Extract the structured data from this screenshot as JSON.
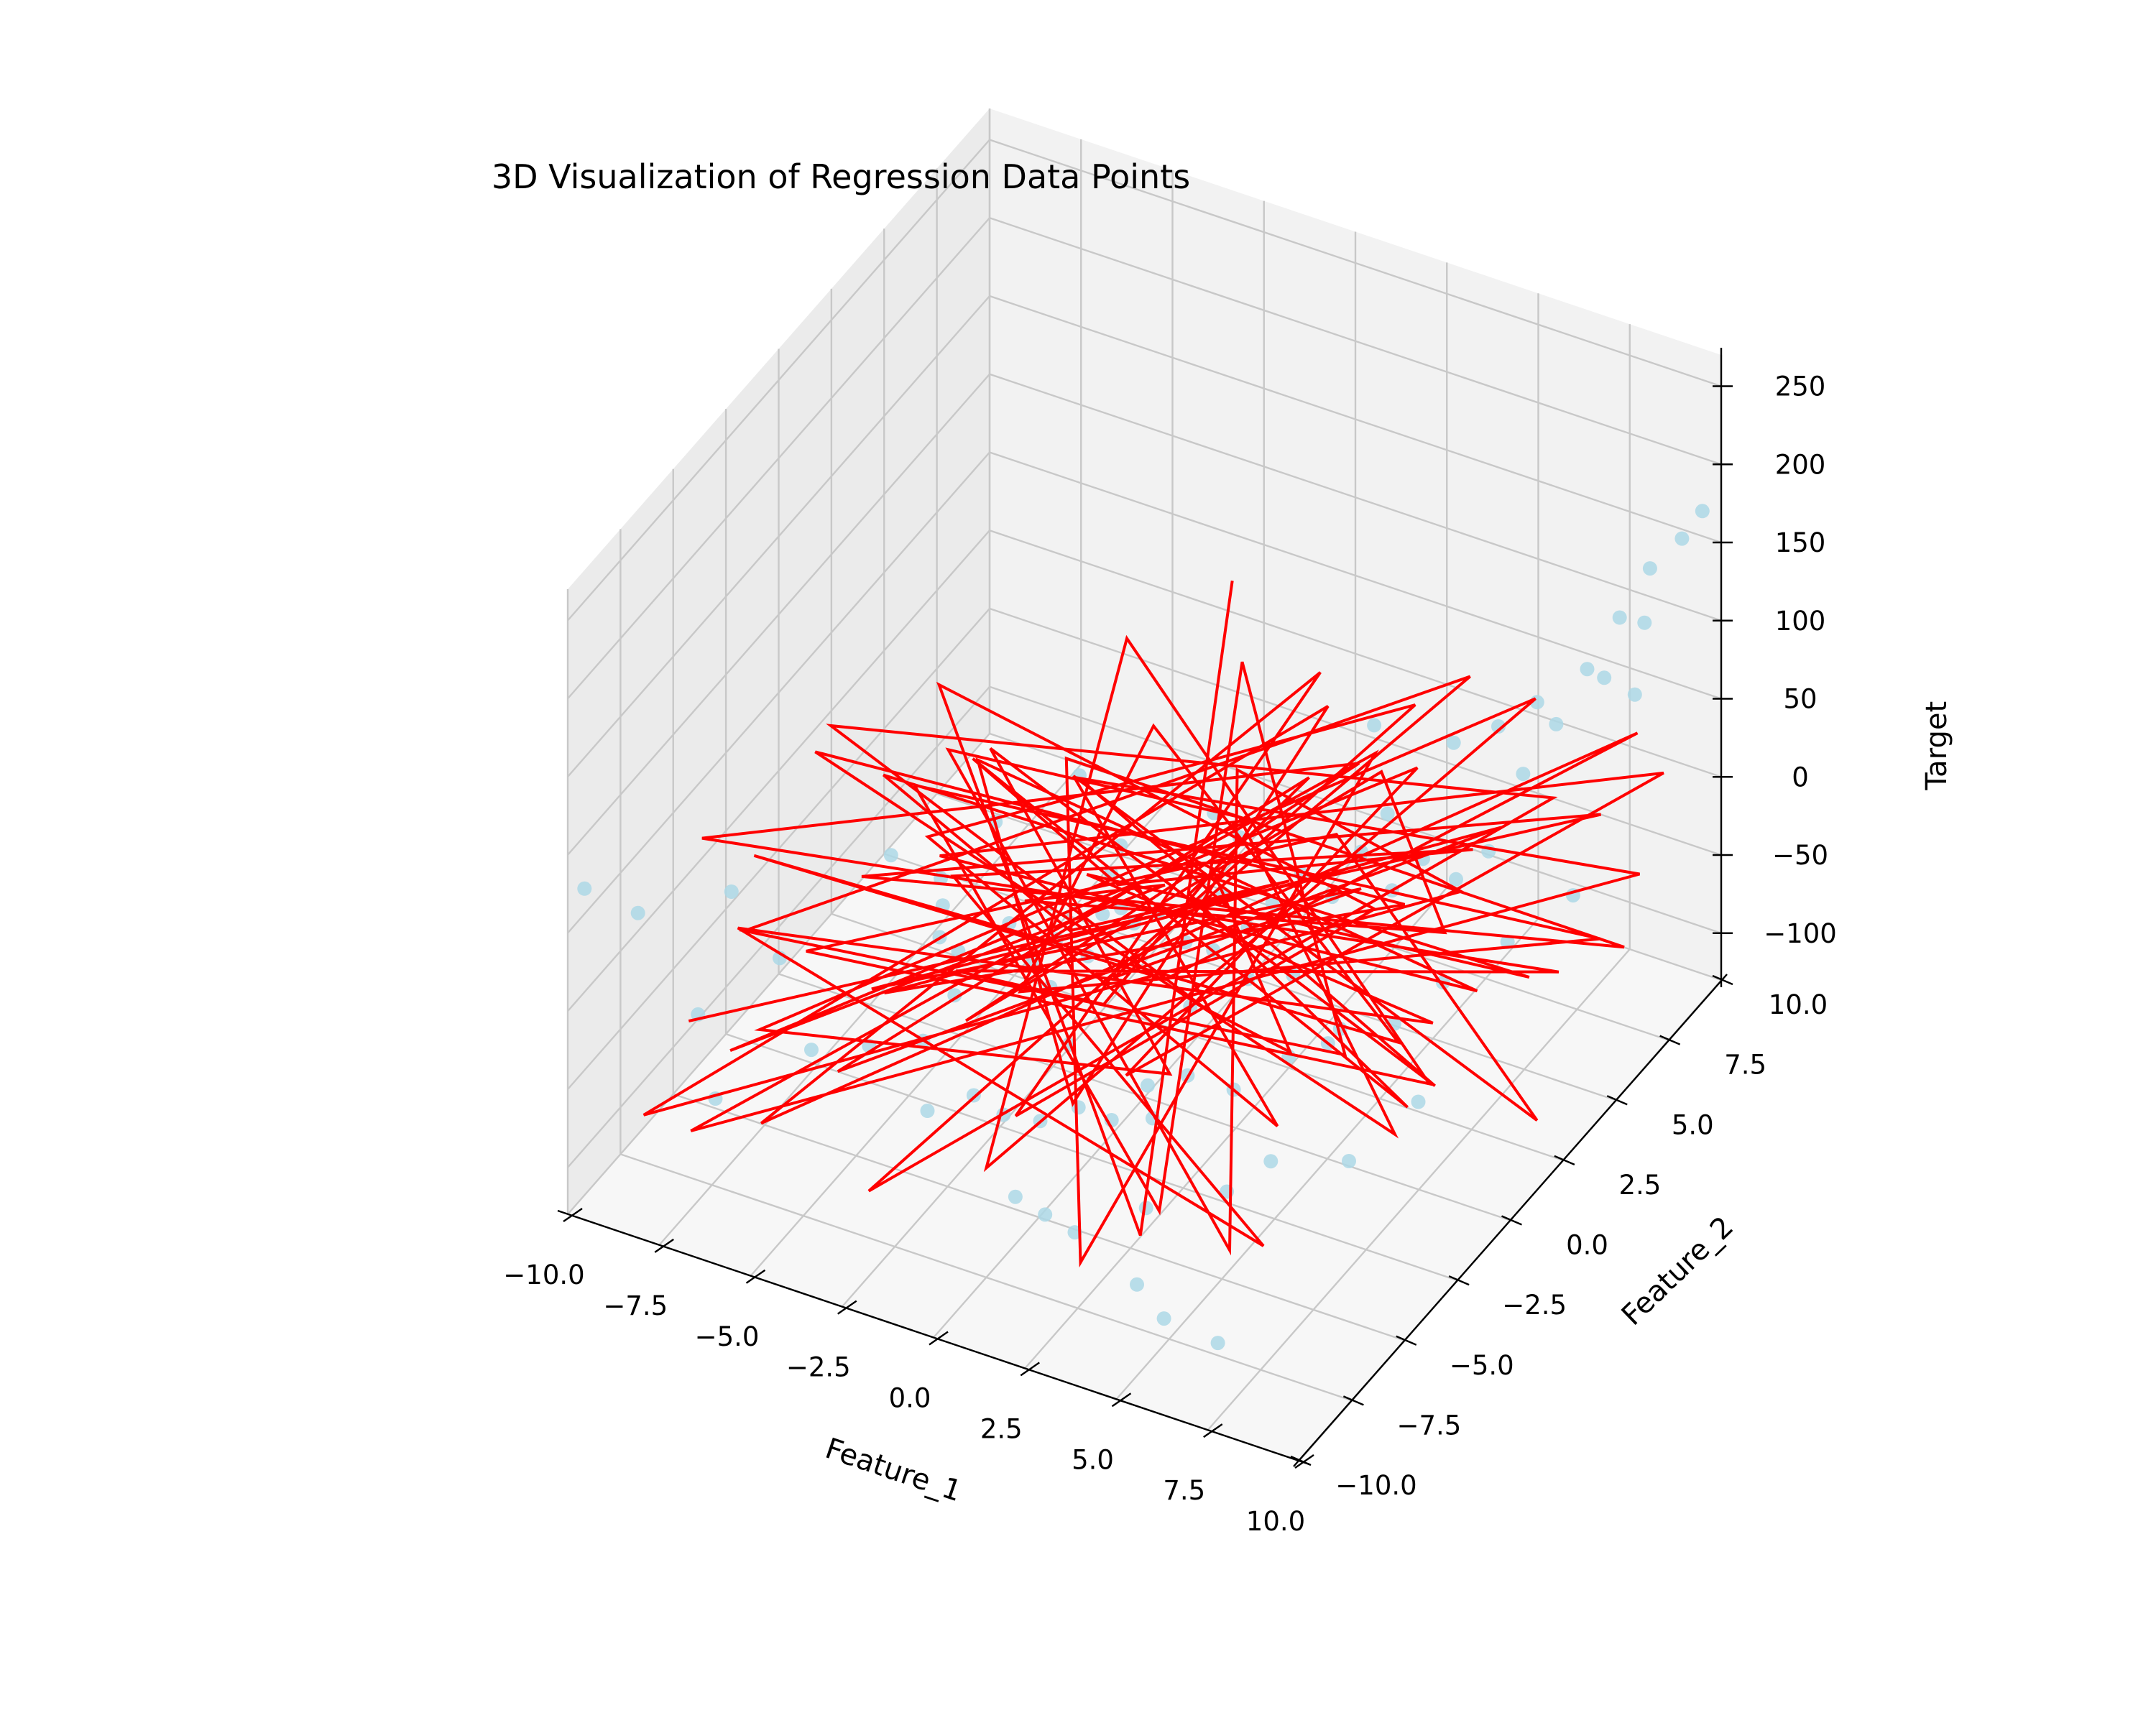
{
  "chart_data": {
    "type": "scatter",
    "title": "3D Visualization of Regression Data Points",
    "xlabel": "Feature_1",
    "ylabel": "Feature_2",
    "zlabel": "Target",
    "xlim": [
      -10,
      10
    ],
    "ylim": [
      -10,
      10
    ],
    "zlim": [
      -130,
      270
    ],
    "x_ticks": [
      -10.0,
      -7.5,
      -5.0,
      -2.5,
      0.0,
      2.5,
      5.0,
      7.5,
      10.0
    ],
    "x_tick_labels": [
      "−10.0",
      "−7.5",
      "−5.0",
      "−2.5",
      "0.0",
      "2.5",
      "5.0",
      "7.5",
      "10.0"
    ],
    "y_ticks": [
      -10.0,
      -7.5,
      -5.0,
      -2.5,
      0.0,
      2.5,
      5.0,
      7.5,
      10.0
    ],
    "y_tick_labels": [
      "−10.0",
      "−7.5",
      "−5.0",
      "−2.5",
      "0.0",
      "2.5",
      "5.0",
      "7.5",
      "10.0"
    ],
    "z_ticks": [
      -100,
      -50,
      0,
      50,
      100,
      150,
      200,
      250
    ],
    "z_tick_labels": [
      "−100",
      "−50",
      "0",
      "50",
      "100",
      "150",
      "200",
      "250"
    ],
    "grid": true,
    "colors": {
      "points": "#add8e6",
      "line": "#ff0000",
      "pane_back": "#f2f2f2",
      "pane_side": "#ebebeb",
      "pane_floor": "#f7f7f7",
      "grid": "#c8c8c8"
    },
    "series": [
      {
        "type": "scatter3d",
        "points": [
          [
            -9.6,
            -9.9,
            80
          ],
          [
            -8.6,
            -9.1,
            60
          ],
          [
            -7.6,
            -6.4,
            40
          ],
          [
            -6.9,
            -9.2,
            10
          ],
          [
            -5.2,
            -3.0,
            30
          ],
          [
            -6.8,
            -5.5,
            -10
          ],
          [
            -7.0,
            -8.2,
            -60
          ],
          [
            -4.3,
            -2.2,
            10
          ],
          [
            -4.1,
            -2.6,
            -20
          ],
          [
            -3.9,
            -2.8,
            5
          ],
          [
            -3.3,
            -3.1,
            -15
          ],
          [
            -2.6,
            -1.9,
            -10
          ],
          [
            -2.1,
            -1.7,
            -35
          ],
          [
            -1.6,
            -1.4,
            -20
          ],
          [
            -1.2,
            -0.6,
            -40
          ],
          [
            -0.8,
            -0.6,
            -10
          ],
          [
            -0.4,
            0.2,
            -25
          ],
          [
            0.2,
            0.3,
            -15
          ],
          [
            0.6,
            0.9,
            -40
          ],
          [
            1.1,
            1.8,
            -20
          ],
          [
            1.5,
            2.3,
            -45
          ],
          [
            2.0,
            2.6,
            -30
          ],
          [
            2.5,
            3.1,
            -15
          ],
          [
            3.0,
            3.7,
            -35
          ],
          [
            3.5,
            4.2,
            -10
          ],
          [
            4.0,
            4.8,
            -40
          ],
          [
            4.5,
            5.4,
            -25
          ],
          [
            5.0,
            6.1,
            -45
          ],
          [
            5.6,
            6.6,
            -30
          ],
          [
            6.2,
            7.2,
            15
          ],
          [
            6.7,
            7.9,
            40
          ],
          [
            7.2,
            8.5,
            70
          ],
          [
            7.8,
            9.0,
            100
          ],
          [
            8.4,
            9.4,
            130
          ],
          [
            9.1,
            9.7,
            150
          ],
          [
            9.6,
            9.8,
            170
          ],
          [
            9.0,
            8.1,
            120
          ],
          [
            8.3,
            7.4,
            90
          ],
          [
            6.1,
            6.2,
            60
          ],
          [
            4.8,
            3.2,
            40
          ],
          [
            -1.9,
            -4.8,
            -70
          ],
          [
            -1.2,
            -4.6,
            -80
          ],
          [
            -0.6,
            -3.9,
            -90
          ],
          [
            0.1,
            -3.3,
            -85
          ],
          [
            0.6,
            -2.6,
            -100
          ],
          [
            1.3,
            -2.1,
            -80
          ],
          [
            2.1,
            -1.6,
            -75
          ],
          [
            2.9,
            -0.8,
            -90
          ],
          [
            3.6,
            0.6,
            -85
          ],
          [
            4.6,
            1.3,
            -70
          ],
          [
            5.5,
            2.3,
            -75
          ],
          [
            6.2,
            3.4,
            -60
          ],
          [
            7.1,
            4.9,
            -50
          ],
          [
            8.2,
            6.1,
            -30
          ],
          [
            -0.3,
            -5.6,
            -110
          ],
          [
            0.8,
            -6.1,
            -105
          ],
          [
            1.9,
            -6.6,
            -100
          ],
          [
            3.1,
            -5.3,
            -95
          ],
          [
            4.5,
            -3.9,
            -95
          ],
          [
            5.3,
            -3.2,
            -80
          ],
          [
            6.8,
            -2.1,
            -85
          ],
          [
            7.6,
            -0.2,
            -70
          ],
          [
            3.6,
            -6.6,
            -120
          ],
          [
            4.8,
            -7.4,
            -120
          ],
          [
            6.1,
            -7.1,
            -130
          ],
          [
            -5.3,
            -6.6,
            -40
          ],
          [
            -4.3,
            -5.6,
            -45
          ],
          [
            -2.3,
            -6.3,
            -60
          ],
          [
            -3.0,
            -3.8,
            -30
          ],
          [
            -1.4,
            1.3,
            0
          ],
          [
            1.1,
            2.6,
            5
          ],
          [
            3.7,
            3.8,
            -5
          ],
          [
            4.3,
            7.2,
            20
          ],
          [
            2.3,
            6.9,
            20
          ],
          [
            -2.7,
            1.6,
            30
          ],
          [
            -0.8,
            -0.2,
            10
          ],
          [
            0.4,
            2.6,
            15
          ],
          [
            -3.9,
            -0.3,
            20
          ],
          [
            5.6,
            8.9,
            30
          ],
          [
            8.1,
            9.2,
            50
          ],
          [
            -0.4,
            -2.9,
            -55
          ],
          [
            1.6,
            -0.6,
            -50
          ],
          [
            2.6,
            0.4,
            -40
          ],
          [
            -1.1,
            0.8,
            -30
          ],
          [
            0.9,
            1.7,
            -55
          ],
          [
            3.2,
            1.5,
            -50
          ],
          [
            -2.0,
            -1.0,
            -60
          ],
          [
            2.3,
            -3.6,
            -70
          ],
          [
            -3.4,
            -4.6,
            -50
          ],
          [
            4.9,
            0.2,
            -60
          ]
        ]
      },
      {
        "type": "line3d",
        "points": [
          [
            -9.0,
            -6.0,
            -60
          ],
          [
            7.0,
            9.5,
            -40
          ],
          [
            -6.0,
            -3.0,
            10
          ],
          [
            8.5,
            8.0,
            -90
          ],
          [
            -3.0,
            1.5,
            40
          ],
          [
            2.0,
            -6.5,
            -120
          ],
          [
            4.0,
            4.0,
            60
          ],
          [
            -7.5,
            -8.5,
            -80
          ],
          [
            9.5,
            7.0,
            -20
          ],
          [
            -1.5,
            -0.5,
            70
          ],
          [
            6.5,
            2.5,
            -110
          ],
          [
            -4.5,
            0.5,
            50
          ],
          [
            3.0,
            -4.0,
            -30
          ],
          [
            -8.5,
            -3.5,
            -100
          ],
          [
            5.5,
            9.0,
            30
          ],
          [
            0.0,
            -7.5,
            -60
          ],
          [
            -2.5,
            3.5,
            90
          ],
          [
            7.5,
            0.5,
            -70
          ],
          [
            -5.5,
            -6.5,
            20
          ],
          [
            1.5,
            6.5,
            -50
          ],
          [
            9.0,
            3.0,
            -120
          ],
          [
            -0.5,
            -2.5,
            110
          ],
          [
            4.5,
            -1.5,
            -90
          ],
          [
            -6.5,
            1.0,
            -30
          ],
          [
            2.5,
            8.5,
            10
          ],
          [
            -3.5,
            -7.0,
            -110
          ],
          [
            8.0,
            5.5,
            40
          ],
          [
            -8.0,
            -1.0,
            60
          ],
          [
            0.5,
            2.0,
            -100
          ],
          [
            6.0,
            -3.5,
            0
          ],
          [
            -1.0,
            5.0,
            -70
          ],
          [
            3.5,
            -8.0,
            80
          ],
          [
            -4.0,
            -2.0,
            -50
          ],
          [
            7.0,
            7.5,
            -110
          ],
          [
            -9.5,
            -4.5,
            30
          ],
          [
            5.0,
            1.5,
            100
          ],
          [
            -2.0,
            -5.0,
            -20
          ],
          [
            1.0,
            9.5,
            -60
          ],
          [
            8.5,
            -0.5,
            50
          ],
          [
            -5.0,
            3.0,
            -90
          ],
          [
            2.0,
            -2.5,
            60
          ],
          [
            -7.0,
            -7.5,
            -40
          ],
          [
            4.0,
            6.0,
            20
          ],
          [
            -0.5,
            0.0,
            -120
          ],
          [
            9.0,
            9.0,
            10
          ],
          [
            -3.0,
            -4.5,
            70
          ],
          [
            6.5,
            4.5,
            -80
          ],
          [
            -6.0,
            2.5,
            0
          ],
          [
            1.5,
            -6.0,
            -30
          ],
          [
            3.0,
            3.5,
            90
          ],
          [
            -8.5,
            -9.0,
            -70
          ],
          [
            7.5,
            2.0,
            30
          ],
          [
            -1.5,
            7.0,
            -40
          ],
          [
            5.5,
            -5.5,
            -100
          ],
          [
            -4.5,
            -1.5,
            80
          ],
          [
            0.0,
            4.5,
            -20
          ],
          [
            8.0,
            -2.0,
            -60
          ],
          [
            -9.0,
            0.0,
            20
          ],
          [
            2.5,
            8.0,
            -110
          ],
          [
            -2.5,
            -8.0,
            40
          ],
          [
            6.0,
            6.5,
            -10
          ],
          [
            -5.5,
            -5.0,
            -80
          ],
          [
            4.5,
            0.0,
            110
          ],
          [
            -0.5,
            3.0,
            -50
          ],
          [
            9.5,
            -4.0,
            0
          ],
          [
            -7.0,
            4.0,
            -30
          ],
          [
            1.0,
            -3.0,
            60
          ],
          [
            3.5,
            9.5,
            -90
          ],
          [
            -3.5,
            -3.0,
            30
          ],
          [
            7.0,
            -6.5,
            -70
          ],
          [
            -6.5,
            -8.0,
            50
          ],
          [
            5.0,
            5.0,
            -120
          ],
          [
            -1.0,
            -1.0,
            20
          ],
          [
            8.5,
            3.5,
            -40
          ],
          [
            -8.0,
            1.5,
            -10
          ],
          [
            2.0,
            -7.0,
            100
          ],
          [
            0.5,
            6.0,
            -80
          ],
          [
            -4.0,
            -6.0,
            0
          ],
          [
            6.5,
            -1.0,
            70
          ],
          [
            -2.0,
            2.0,
            -100
          ],
          [
            4.0,
            8.5,
            40
          ],
          [
            -9.5,
            -2.5,
            -60
          ],
          [
            7.5,
            -3.5,
            10
          ],
          [
            -0.5,
            5.5,
            60
          ],
          [
            3.0,
            -4.5,
            -110
          ],
          [
            -6.0,
            -0.5,
            30
          ],
          [
            9.0,
            6.0,
            -50
          ],
          [
            1.5,
            -8.5,
            80
          ],
          [
            -3.5,
            6.5,
            -20
          ],
          [
            5.5,
            2.5,
            -90
          ],
          [
            -7.5,
            -5.5,
            50
          ],
          [
            0.0,
            1.0,
            -70
          ],
          [
            8.0,
            9.5,
            20
          ],
          [
            -5.0,
            -9.5,
            -40
          ],
          [
            2.5,
            4.0,
            100
          ],
          [
            -1.5,
            -3.5,
            -100
          ],
          [
            6.0,
            0.5,
            30
          ],
          [
            -8.5,
            5.0,
            -10
          ],
          [
            4.5,
            -8.0,
            -60
          ],
          [
            -2.5,
            8.5,
            50
          ]
        ]
      }
    ]
  }
}
